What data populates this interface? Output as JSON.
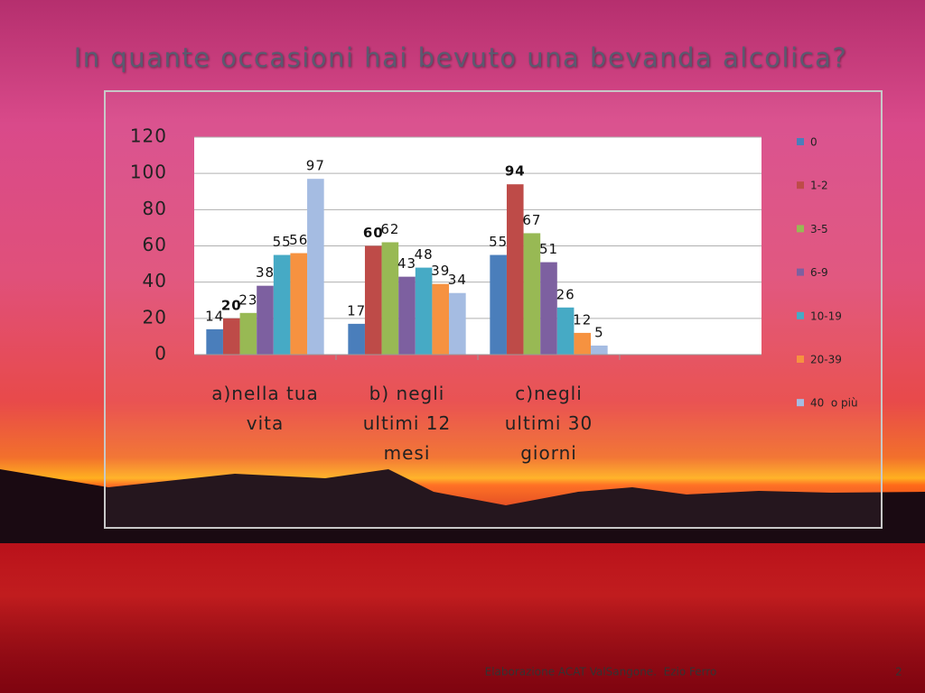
{
  "chart_data": {
    "type": "bar",
    "title": "In quante occasioni hai bevuto una bevanda alcolica?",
    "categories": [
      "a)nella tua vita",
      "b) negli ultimi 12 mesi",
      "c)negli ultimi 30 giorni",
      null
    ],
    "series": [
      {
        "name": "0",
        "color": "#4a7ebb",
        "values": [
          14,
          17,
          55,
          null
        ]
      },
      {
        "name": "1-2",
        "color": "#be4b48",
        "values": [
          20,
          60,
          94,
          null
        ]
      },
      {
        "name": "3-5",
        "color": "#98b954",
        "values": [
          23,
          62,
          67,
          null
        ]
      },
      {
        "name": "6-9",
        "color": "#7d60a0",
        "values": [
          38,
          43,
          51,
          null
        ]
      },
      {
        "name": "10-19",
        "color": "#46aac5",
        "values": [
          55,
          48,
          26,
          null
        ]
      },
      {
        "name": "20-39",
        "color": "#f69240",
        "values": [
          56,
          39,
          12,
          null
        ]
      },
      {
        "name": "40  o più",
        "color": "#a5bce2",
        "values": [
          97,
          34,
          5,
          null
        ]
      }
    ],
    "ylim": [
      0,
      120
    ],
    "yticks": [
      0,
      20,
      40,
      60,
      80,
      100,
      120
    ],
    "grid": true,
    "legend": "right"
  },
  "footer": {
    "source": "Elaborazione ACAT ValSangone.  Ezio Ferro",
    "page": "2"
  }
}
